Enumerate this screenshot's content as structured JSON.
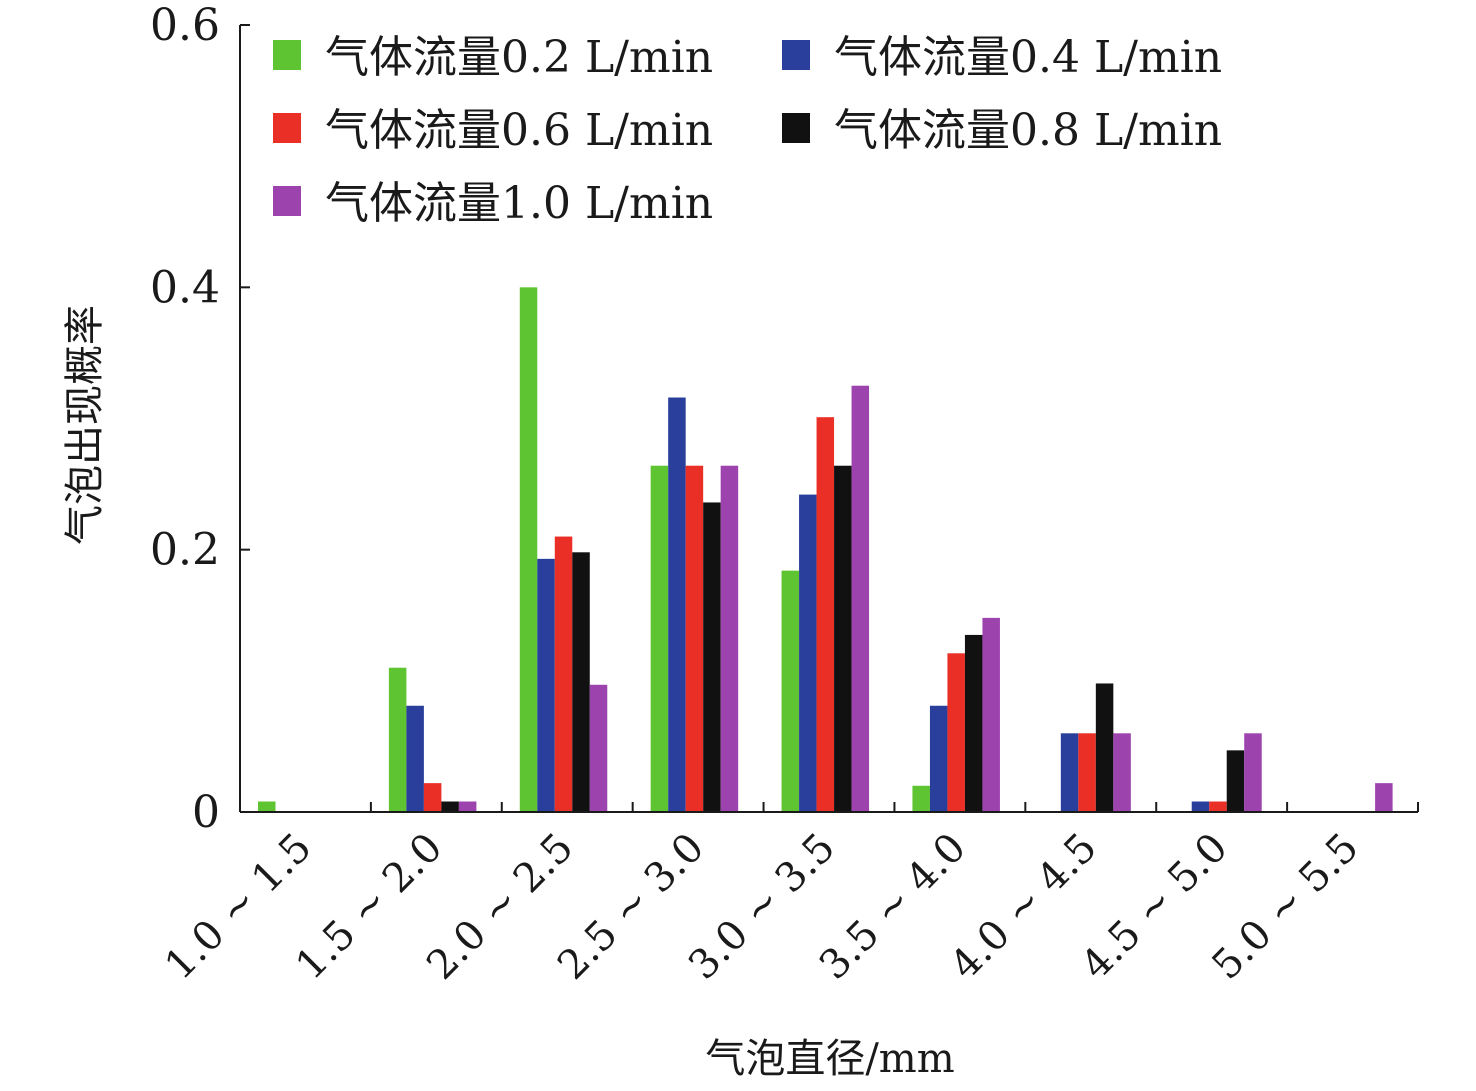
{
  "chart_data": {
    "type": "bar",
    "title": "",
    "xlabel": "气泡直径/mm",
    "ylabel": "气泡出现概率",
    "ylim": [
      0,
      0.6
    ],
    "yticks": [
      {
        "value": 0,
        "label": "0"
      },
      {
        "value": 0.2,
        "label": "0.2"
      },
      {
        "value": 0.4,
        "label": "0.4"
      },
      {
        "value": 0.6,
        "label": "0.6"
      }
    ],
    "categories": [
      "1.0 ~ 1.5",
      "1.5 ~ 2.0",
      "2.0 ~ 2.5",
      "2.5 ~ 3.0",
      "3.0 ~ 3.5",
      "3.5 ~ 4.0",
      "4.0 ~ 4.5",
      "4.5 ~ 5.0",
      "5.0 ~ 5.5"
    ],
    "series": [
      {
        "name": "气体流量0.2 L/min",
        "color": "#5fc431",
        "values": [
          0.008,
          0.11,
          0.4,
          0.264,
          0.184,
          0.02,
          0,
          0,
          0
        ]
      },
      {
        "name": "气体流量0.4 L/min",
        "color": "#2a3f9b",
        "values": [
          0,
          0.081,
          0.193,
          0.316,
          0.242,
          0.081,
          0.06,
          0.008,
          0
        ]
      },
      {
        "name": "气体流量0.6 L/min",
        "color": "#ea2f26",
        "values": [
          0,
          0.022,
          0.21,
          0.264,
          0.301,
          0.121,
          0.06,
          0.008,
          0
        ]
      },
      {
        "name": "气体流量0.8 L/min",
        "color": "#111111",
        "values": [
          0,
          0.008,
          0.198,
          0.236,
          0.264,
          0.135,
          0.098,
          0.047,
          0
        ]
      },
      {
        "name": "气体流量1.0 L/min",
        "color": "#9c43ad",
        "values": [
          0,
          0.008,
          0.097,
          0.264,
          0.325,
          0.148,
          0.06,
          0.06,
          0.022
        ]
      }
    ],
    "legend_position": "top-left",
    "grid": false
  }
}
